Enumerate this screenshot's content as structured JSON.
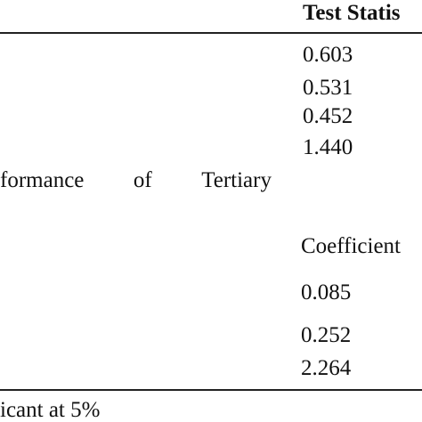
{
  "header": {
    "test_statistic_label": "Test Statis"
  },
  "test_statistic_values": [
    "0.603",
    "0.531",
    "0.452",
    "1.440"
  ],
  "row_label_words": [
    "formance",
    "of",
    "Tertiary"
  ],
  "coefficient_header": "Coefficient",
  "coefficient_values": [
    "0.085",
    "0.252",
    "2.264"
  ],
  "footnote": "icant at 5%"
}
